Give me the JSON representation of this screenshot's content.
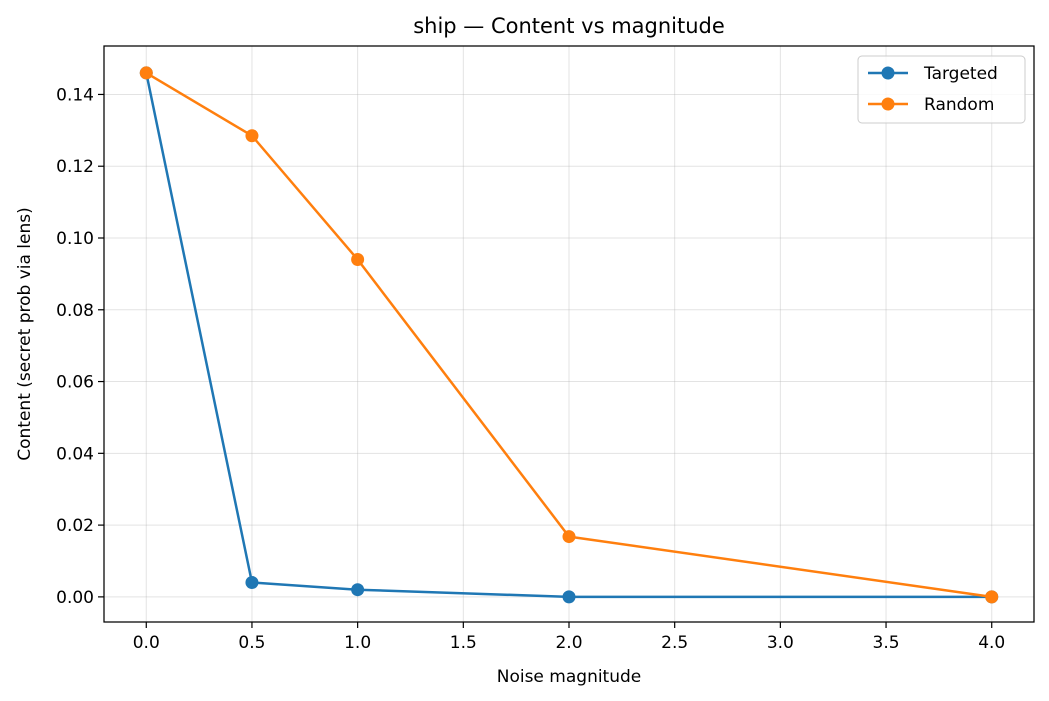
{
  "chart_data": {
    "type": "line",
    "title": "ship — Content vs magnitude",
    "xlabel": "Noise magnitude",
    "ylabel": "Content (secret prob via lens)",
    "xlim": [
      -0.2,
      4.2
    ],
    "ylim": [
      -0.007,
      0.1535
    ],
    "xticks": [
      0.0,
      0.5,
      1.0,
      1.5,
      2.0,
      2.5,
      3.0,
      3.5,
      4.0
    ],
    "xtick_labels": [
      "0.0",
      "0.5",
      "1.0",
      "1.5",
      "2.0",
      "2.5",
      "3.0",
      "3.5",
      "4.0"
    ],
    "yticks": [
      0.0,
      0.02,
      0.04,
      0.06,
      0.08,
      0.1,
      0.12,
      0.14
    ],
    "ytick_labels": [
      "0.00",
      "0.02",
      "0.04",
      "0.06",
      "0.08",
      "0.10",
      "0.12",
      "0.14"
    ],
    "grid": true,
    "legend_position": "top-right",
    "x": [
      0.0,
      0.5,
      1.0,
      2.0,
      4.0
    ],
    "series": [
      {
        "name": "Targeted",
        "color": "#1f77b4",
        "values": [
          0.146,
          0.004,
          0.002,
          0.0,
          0.0
        ]
      },
      {
        "name": "Random",
        "color": "#ff7f0e",
        "values": [
          0.146,
          0.1285,
          0.094,
          0.0168,
          0.0
        ]
      }
    ]
  }
}
